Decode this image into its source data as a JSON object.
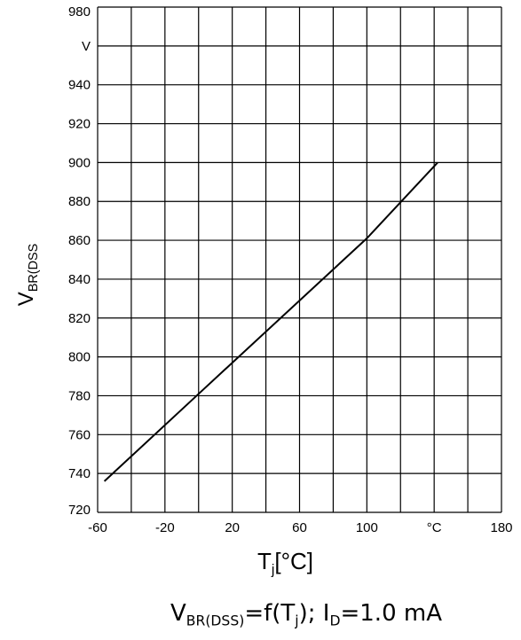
{
  "chart_data": {
    "type": "line",
    "x_tick_labels": [
      "-60",
      "-20",
      "20",
      "60",
      "100",
      "°C",
      "180"
    ],
    "y_tick_labels": [
      "720",
      "740",
      "760",
      "780",
      "800",
      "820",
      "840",
      "860",
      "880",
      "900",
      "920",
      "940",
      "V",
      "980"
    ],
    "xlim": [
      -60,
      180
    ],
    "ylim": [
      720,
      980
    ],
    "grid": true,
    "series": [
      {
        "x": [
          -56,
          0,
          100,
          142
        ],
        "y": [
          736,
          781,
          861,
          900
        ]
      }
    ],
    "ylabel_main": "V",
    "ylabel_sub": "BR(DSS",
    "xlabel_main": "T",
    "xlabel_sub": "j",
    "xlabel_unit": "[°C]",
    "caption": {
      "v": "V",
      "v_sub": "BR(DSS)",
      "eq": "=f(T",
      "t_sub": "j",
      "close": "); I",
      "i_sub": "D",
      "tail": "=1.0 mA"
    }
  }
}
